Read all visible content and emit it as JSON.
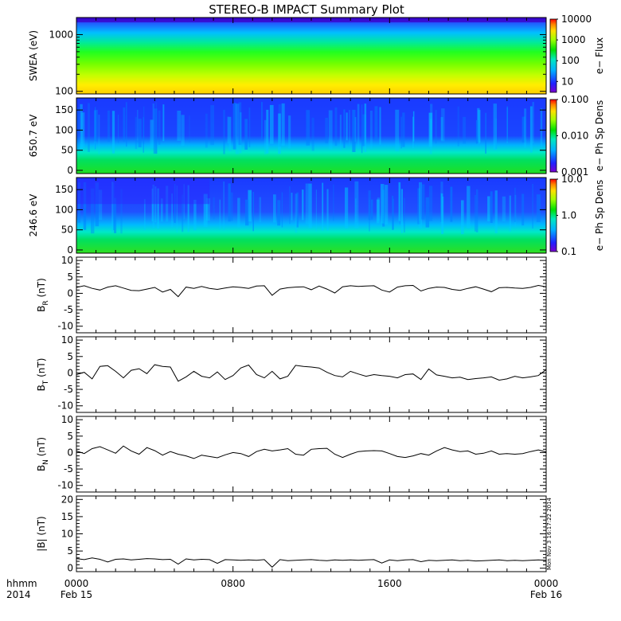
{
  "chart_data": {
    "title": "STEREO-B IMPACT Summary Plot",
    "type": "multi-panel time series",
    "x_axis": {
      "row1_label": "hhmm",
      "row2_label": "2014",
      "ticks": [
        {
          "hour": 0,
          "time": "0000",
          "date": "Feb 15"
        },
        {
          "hour": 8,
          "time": "0800",
          "date": ""
        },
        {
          "hour": 16,
          "time": "1600",
          "date": ""
        },
        {
          "hour": 24,
          "time": "0000",
          "date": "Feb 16"
        }
      ],
      "range_hours": [
        0,
        24
      ]
    },
    "timestamp": "Mon Nov  3 16:17:22 2014",
    "panels": [
      {
        "id": "swea",
        "type": "heatmap",
        "ylabel": "SWEA (eV)",
        "yscale": "log",
        "ylim": [
          90,
          2000
        ],
        "yticks": [
          {
            "v": 100,
            "label": "100"
          },
          {
            "v": 1000,
            "label": "1000"
          }
        ],
        "colorbar": {
          "label": "e− Flux",
          "scale": "log",
          "range": [
            3,
            10000
          ],
          "ticks": [
            "10",
            "100",
            "1000",
            "10000"
          ]
        },
        "description_rows_top_to_bottom": "energy decreasing; flux increasing"
      },
      {
        "id": "pad650",
        "type": "heatmap",
        "ylabel": "650.7 eV",
        "yscale": "linear",
        "ylim": [
          -8,
          180
        ],
        "yticks": [
          {
            "v": 0,
            "label": "0"
          },
          {
            "v": 50,
            "label": "50"
          },
          {
            "v": 100,
            "label": "100"
          },
          {
            "v": 150,
            "label": "150"
          }
        ],
        "colorbar": {
          "label": "e− Ph Sp Dens",
          "scale": "log",
          "range": [
            0.001,
            0.1
          ],
          "ticks": [
            "0.001",
            "0.010",
            "0.100"
          ]
        }
      },
      {
        "id": "pad246",
        "type": "heatmap",
        "ylabel": "246.6 eV",
        "yscale": "linear",
        "ylim": [
          -8,
          180
        ],
        "yticks": [
          {
            "v": 0,
            "label": "0"
          },
          {
            "v": 50,
            "label": "50"
          },
          {
            "v": 100,
            "label": "100"
          },
          {
            "v": 150,
            "label": "150"
          }
        ],
        "colorbar": {
          "label": "e− Ph Sp Dens",
          "scale": "log",
          "range": [
            0.1,
            10
          ],
          "ticks": [
            "0.1",
            "1.0",
            "10.0"
          ]
        }
      },
      {
        "id": "br",
        "type": "line",
        "ylabel_main": "B",
        "ylabel_sub": "R",
        "ylabel_unit": " (nT)",
        "ylim": [
          -12,
          11
        ],
        "yticks": [
          -10,
          -5,
          0,
          5,
          10
        ],
        "x_hours": [
          0,
          0.4,
          0.8,
          1.2,
          1.6,
          2.0,
          2.4,
          2.8,
          3.2,
          3.6,
          4.0,
          4.4,
          4.8,
          5.2,
          5.6,
          6.0,
          6.4,
          6.8,
          7.2,
          7.6,
          8.0,
          8.4,
          8.8,
          9.2,
          9.6,
          10.0,
          10.4,
          10.8,
          11.2,
          11.6,
          12.0,
          12.4,
          12.8,
          13.2,
          13.6,
          14.0,
          14.4,
          14.8,
          15.2,
          15.6,
          16.0,
          16.4,
          16.8,
          17.2,
          17.6,
          18.0,
          18.4,
          18.8,
          19.2,
          19.6,
          20.0,
          20.4,
          20.8,
          21.2,
          21.6,
          22.0,
          22.4,
          22.8,
          23.2,
          23.6,
          24.0
        ],
        "values": [
          1.8,
          2.3,
          1.5,
          1.0,
          1.9,
          2.3,
          1.6,
          0.9,
          0.8,
          1.3,
          1.8,
          0.4,
          1.2,
          -1.0,
          1.9,
          1.5,
          2.1,
          1.5,
          1.2,
          1.6,
          2.0,
          1.8,
          1.5,
          2.2,
          2.3,
          -0.6,
          1.3,
          1.7,
          1.9,
          2.0,
          1.1,
          2.2,
          1.3,
          0.1,
          2.0,
          2.3,
          2.1,
          2.2,
          2.3,
          1.0,
          0.4,
          1.9,
          2.3,
          2.4,
          0.7,
          1.5,
          1.9,
          1.8,
          1.2,
          0.9,
          1.5,
          2.0,
          1.3,
          0.5,
          1.7,
          1.8,
          1.6,
          1.5,
          1.8,
          2.4,
          2.0
        ]
      },
      {
        "id": "bt",
        "type": "line",
        "ylabel_main": "B",
        "ylabel_sub": "T",
        "ylabel_unit": " (nT)",
        "ylim": [
          -12,
          11
        ],
        "yticks": [
          -10,
          -5,
          0,
          5,
          10
        ],
        "x_hours": [
          0,
          0.4,
          0.8,
          1.2,
          1.6,
          2.0,
          2.4,
          2.8,
          3.2,
          3.6,
          4.0,
          4.4,
          4.8,
          5.2,
          5.6,
          6.0,
          6.4,
          6.8,
          7.2,
          7.6,
          8.0,
          8.4,
          8.8,
          9.2,
          9.6,
          10.0,
          10.4,
          10.8,
          11.2,
          11.6,
          12.0,
          12.4,
          12.8,
          13.2,
          13.6,
          14.0,
          14.4,
          14.8,
          15.2,
          15.6,
          16.0,
          16.4,
          16.8,
          17.2,
          17.6,
          18.0,
          18.4,
          18.8,
          19.2,
          19.6,
          20.0,
          20.4,
          20.8,
          21.2,
          21.6,
          22.0,
          22.4,
          22.8,
          23.2,
          23.6,
          24.0
        ],
        "values": [
          -0.5,
          0.2,
          -1.8,
          2.0,
          2.2,
          0.5,
          -1.5,
          0.8,
          1.3,
          -0.2,
          2.5,
          2.0,
          1.8,
          -2.5,
          -1.2,
          0.5,
          -1.0,
          -1.5,
          0.3,
          -2.0,
          -0.8,
          1.5,
          2.4,
          -0.5,
          -1.5,
          0.5,
          -1.8,
          -1.0,
          2.3,
          2.0,
          1.8,
          1.5,
          0.2,
          -0.8,
          -1.2,
          0.5,
          -0.3,
          -1.0,
          -0.5,
          -0.8,
          -1.0,
          -1.5,
          -0.5,
          -0.3,
          -2.0,
          1.2,
          -0.6,
          -1.0,
          -1.5,
          -1.3,
          -2.0,
          -1.7,
          -1.5,
          -1.2,
          -2.2,
          -1.8,
          -1.0,
          -1.5,
          -1.2,
          -0.8,
          1.0
        ]
      },
      {
        "id": "bn",
        "type": "line",
        "ylabel_main": "B",
        "ylabel_sub": "N",
        "ylabel_unit": " (nT)",
        "ylim": [
          -12,
          11
        ],
        "yticks": [
          -10,
          -5,
          0,
          5,
          10
        ],
        "x_hours": [
          0,
          0.4,
          0.8,
          1.2,
          1.6,
          2.0,
          2.4,
          2.8,
          3.2,
          3.6,
          4.0,
          4.4,
          4.8,
          5.2,
          5.6,
          6.0,
          6.4,
          6.8,
          7.2,
          7.6,
          8.0,
          8.4,
          8.8,
          9.2,
          9.6,
          10.0,
          10.4,
          10.8,
          11.2,
          11.6,
          12.0,
          12.4,
          12.8,
          13.2,
          13.6,
          14.0,
          14.4,
          14.8,
          15.2,
          15.6,
          16.0,
          16.4,
          16.8,
          17.2,
          17.6,
          18.0,
          18.4,
          18.8,
          19.2,
          19.6,
          20.0,
          20.4,
          20.8,
          21.2,
          21.6,
          22.0,
          22.4,
          22.8,
          23.2,
          23.6,
          24.0
        ],
        "values": [
          0.5,
          -0.3,
          1.2,
          1.8,
          0.8,
          -0.2,
          2.0,
          0.5,
          -0.5,
          1.5,
          0.6,
          -0.8,
          0.3,
          -0.5,
          -1.0,
          -1.8,
          -0.8,
          -1.2,
          -1.6,
          -0.7,
          0.0,
          -0.3,
          -1.2,
          0.3,
          1.0,
          0.5,
          0.8,
          1.2,
          -0.5,
          -0.8,
          1.0,
          1.2,
          1.3,
          -0.5,
          -1.5,
          -0.5,
          0.3,
          0.5,
          0.6,
          0.5,
          -0.3,
          -1.2,
          -1.5,
          -1.0,
          -0.3,
          -0.8,
          0.5,
          1.5,
          0.8,
          0.3,
          0.5,
          -0.5,
          -0.2,
          0.5,
          -0.5,
          -0.3,
          -0.5,
          -0.3,
          0.3,
          0.8,
          0.2
        ]
      },
      {
        "id": "bmag",
        "type": "line",
        "ylabel_main": "|B|",
        "ylabel_sub": "",
        "ylabel_unit": " (nT)",
        "ylim": [
          -1,
          21
        ],
        "yticks": [
          0,
          5,
          10,
          15,
          20
        ],
        "x_hours": [
          0,
          0.4,
          0.8,
          1.2,
          1.6,
          2.0,
          2.4,
          2.8,
          3.2,
          3.6,
          4.0,
          4.4,
          4.8,
          5.2,
          5.6,
          6.0,
          6.4,
          6.8,
          7.2,
          7.6,
          8.0,
          8.4,
          8.8,
          9.2,
          9.6,
          10.0,
          10.4,
          10.8,
          11.2,
          11.6,
          12.0,
          12.4,
          12.8,
          13.2,
          13.6,
          14.0,
          14.4,
          14.8,
          15.2,
          15.6,
          16.0,
          16.4,
          16.8,
          17.2,
          17.6,
          18.0,
          18.4,
          18.8,
          19.2,
          19.6,
          20.0,
          20.4,
          20.8,
          21.2,
          21.6,
          22.0,
          22.4,
          22.8,
          23.2,
          23.6,
          24.0
        ],
        "values": [
          2.8,
          2.5,
          3.0,
          2.6,
          1.8,
          2.6,
          2.7,
          2.4,
          2.6,
          2.8,
          2.7,
          2.5,
          2.6,
          1.2,
          2.7,
          2.4,
          2.6,
          2.5,
          1.4,
          2.5,
          2.4,
          2.3,
          2.4,
          2.3,
          2.5,
          0.3,
          2.5,
          2.2,
          2.3,
          2.4,
          2.5,
          2.3,
          2.2,
          2.4,
          2.3,
          2.4,
          2.3,
          2.4,
          2.5,
          1.5,
          2.4,
          2.2,
          2.4,
          2.5,
          1.9,
          2.3,
          2.2,
          2.3,
          2.4,
          2.2,
          2.3,
          2.1,
          2.2,
          2.3,
          2.4,
          2.2,
          2.3,
          2.2,
          2.3,
          2.4,
          2.3
        ]
      }
    ]
  }
}
